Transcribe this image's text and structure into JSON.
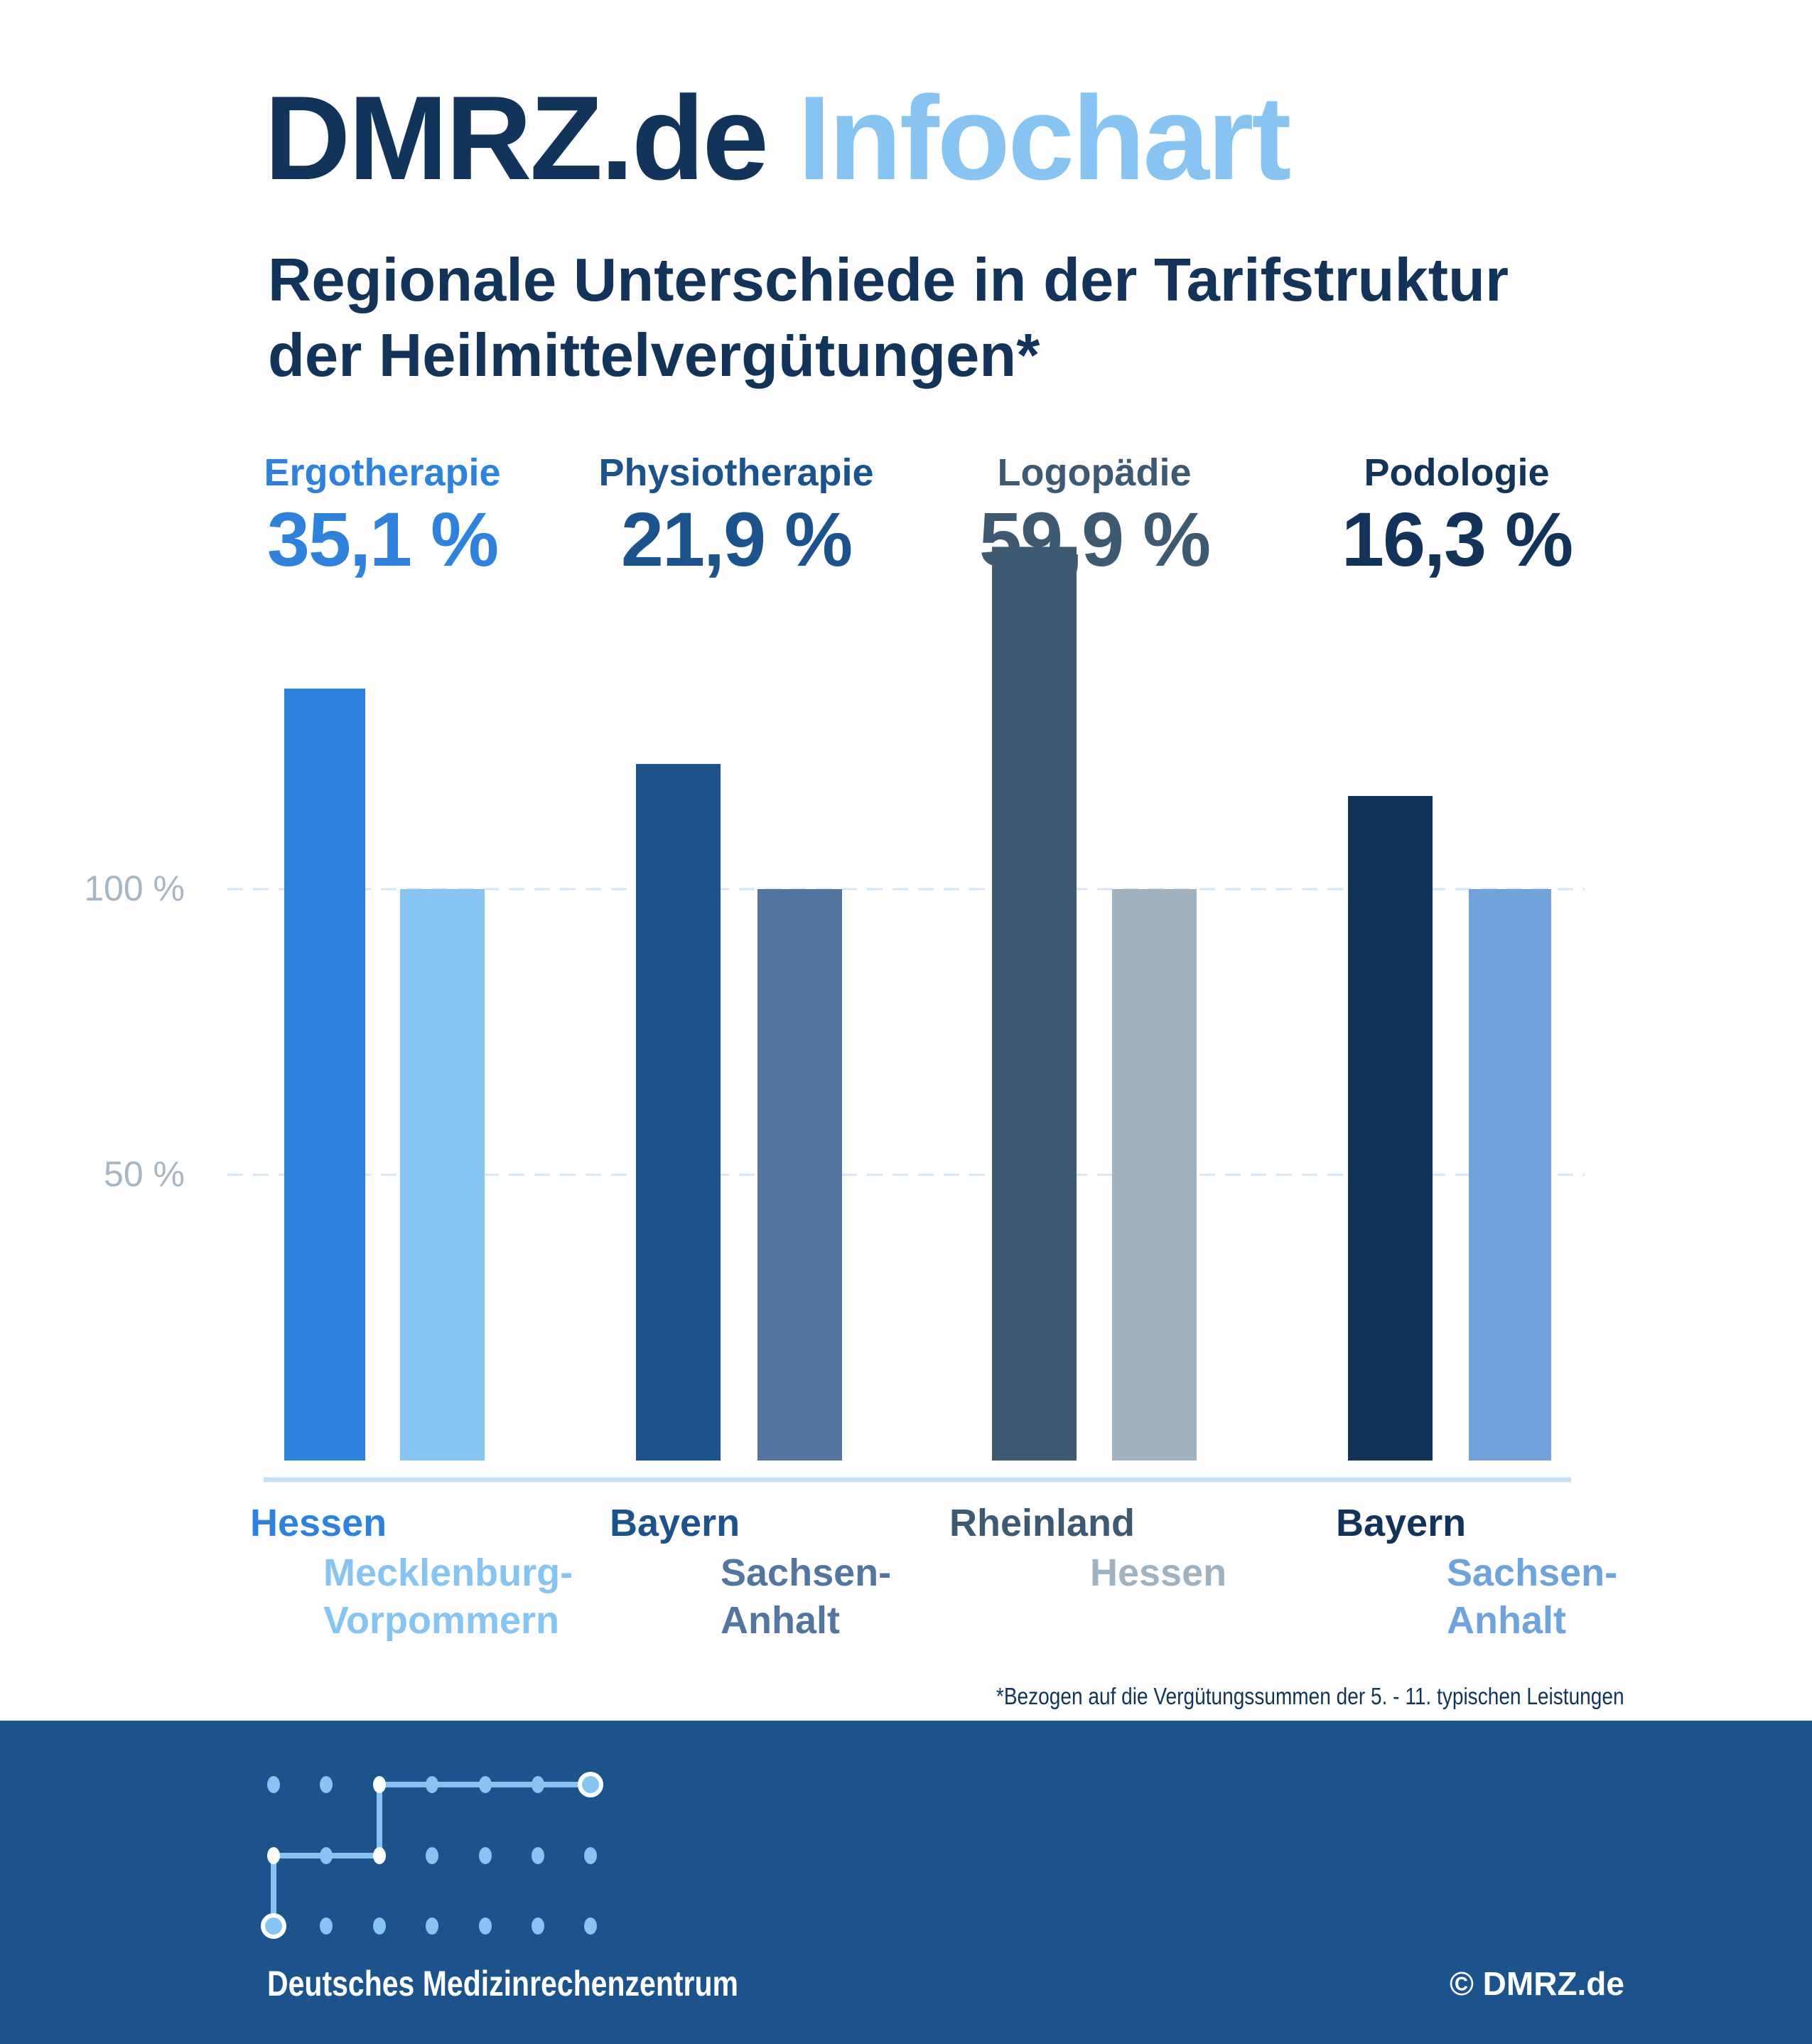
{
  "header": {
    "brand": "DMRZ.de",
    "product": "Infochart"
  },
  "subtitle": [
    "Regionale Unterschiede in der Tarifstruktur",
    "der Heilmittelvergütungen*"
  ],
  "chart_data": {
    "type": "bar",
    "title": "Regionale Unterschiede in der Tarifstruktur der Heilmittelvergütungen*",
    "ylabel": "",
    "xlabel": "",
    "ylim": [
      0,
      160
    ],
    "yticks": [
      {
        "value": 50,
        "label": "50 %"
      },
      {
        "value": 100,
        "label": "100 %"
      }
    ],
    "grid": "dashed at ticks",
    "groups": [
      {
        "category": "Ergotherapie",
        "difference": "35,1 %",
        "color": "#2e82dc",
        "bars": [
          {
            "region": "Hessen",
            "value": 135.1,
            "color": "#2e82dc"
          },
          {
            "region": "Mecklenburg-Vorpommern",
            "lines": [
              "Mecklenburg-",
              "Vorpommern"
            ],
            "value": 100,
            "color": "#88c4f2"
          }
        ]
      },
      {
        "category": "Physiotherapie",
        "difference": "21,9 %",
        "color": "#1c538c",
        "bars": [
          {
            "region": "Bayern",
            "value": 121.9,
            "color": "#1c538c"
          },
          {
            "region": "Sachsen-Anhalt",
            "lines": [
              "Sachsen-",
              "Anhalt"
            ],
            "value": 100,
            "color": "#52769f"
          }
        ]
      },
      {
        "category": "Logopädie",
        "difference": "59,9 %",
        "color": "#3e5a72",
        "bars": [
          {
            "region": "Rheinland",
            "value": 159.9,
            "color": "#3e5a72"
          },
          {
            "region": "Hessen",
            "lines": [
              "Hessen"
            ],
            "value": 100,
            "color": "#a0b2c0"
          }
        ]
      },
      {
        "category": "Podologie",
        "difference": "16,3 %",
        "color": "#13345a",
        "bars": [
          {
            "region": "Bayern",
            "value": 116.3,
            "color": "#13345a"
          },
          {
            "region": "Sachsen-Anhalt",
            "lines": [
              "Sachsen-",
              "Anhalt"
            ],
            "value": 100,
            "color": "#6ea4db"
          }
        ]
      }
    ]
  },
  "footnote": "*Bezogen auf die Vergütungssummen der 5. - 11. typischen Leistungen",
  "footer": {
    "organization": "Deutsches Medizinrechenzentrum",
    "copyright": "© DMRZ.de"
  }
}
